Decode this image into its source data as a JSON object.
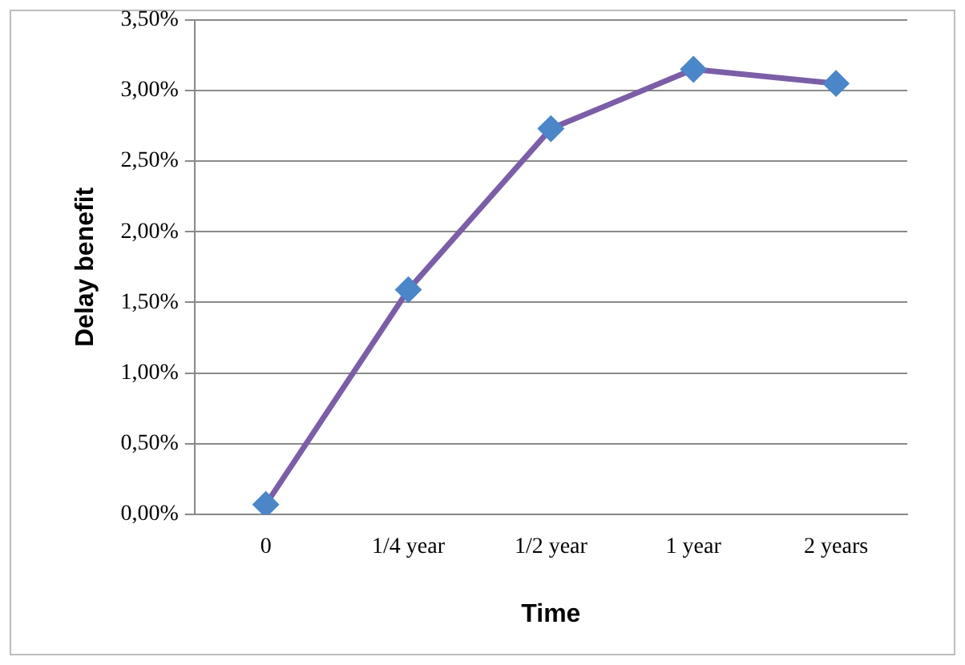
{
  "chart_data": {
    "type": "line",
    "xlabel": "Time",
    "ylabel": "Delay benefit",
    "categories": [
      "0",
      "1/4 year",
      "1/2 year",
      "1 year",
      "2 years"
    ],
    "series": [
      {
        "color": "#7b5ea7",
        "colors": [
          "#4a86c8",
          "#4a86c8",
          "#4a86c8",
          "#4a86c8",
          "#4a86c8"
        ],
        "values": [
          0.07,
          1.59,
          2.73,
          3.15,
          3.05
        ]
      }
    ],
    "ylim": [
      0,
      3.5
    ],
    "yticks": [
      {
        "value": 0,
        "label": "0,00%"
      },
      {
        "value": 0.5,
        "label": "0,50%"
      },
      {
        "value": 1,
        "label": "1,00%"
      },
      {
        "value": 1.5,
        "label": "1,50%"
      },
      {
        "value": 2,
        "label": "2,00%"
      },
      {
        "value": 2.5,
        "label": "2,50%"
      },
      {
        "value": 3,
        "label": "3,00%"
      },
      {
        "value": 3.5,
        "label": "3,50%"
      }
    ],
    "grid": "y",
    "legend": false,
    "marker": "diamond",
    "line_style": "solid"
  }
}
